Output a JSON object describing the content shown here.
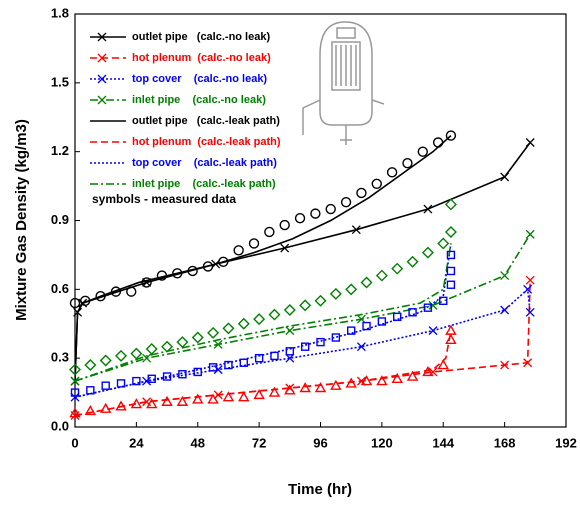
{
  "chart_data": {
    "type": "line",
    "x_label": "Time (hr)",
    "y_label": "Mixture Gas Density (kg/m3)",
    "annotation": "symbols - measured data",
    "xlim": [
      0,
      192
    ],
    "xticks": [
      0,
      24,
      48,
      72,
      96,
      120,
      144,
      168,
      192
    ],
    "ylim": [
      0,
      1.8
    ],
    "yticks": [
      {
        "value": 0,
        "label": "0.0"
      },
      0.3,
      0.6,
      0.9,
      1.2,
      1.5,
      1.8
    ],
    "legend": "top-left",
    "series": [
      {
        "name": "outlet pipe   (calc.-no leak)",
        "color": "#000000",
        "dash": "solid",
        "marker": "x",
        "x": [
          0,
          1,
          3,
          28,
          55,
          82,
          110,
          138,
          168,
          178
        ],
        "values": [
          0.2,
          0.5,
          0.54,
          0.63,
          0.71,
          0.78,
          0.86,
          0.95,
          1.09,
          1.24
        ]
      },
      {
        "name": "hot plenum  (calc.-no leak)",
        "color": "#ff0000",
        "dash": "dashed",
        "marker": "x",
        "x": [
          0,
          28,
          56,
          84,
          112,
          140,
          168,
          177,
          178
        ],
        "values": [
          0.05,
          0.11,
          0.14,
          0.17,
          0.2,
          0.24,
          0.27,
          0.28,
          0.64
        ]
      },
      {
        "name": "top cover    (calc.-no leak)",
        "color": "#0000ff",
        "dash": "dotted",
        "marker": "x",
        "x": [
          0,
          28,
          56,
          84,
          112,
          140,
          168,
          177,
          178
        ],
        "values": [
          0.13,
          0.2,
          0.25,
          0.3,
          0.35,
          0.42,
          0.51,
          0.6,
          0.5
        ]
      },
      {
        "name": "inlet pipe    (calc.-no leak)",
        "color": "#008000",
        "dash": "dashdot",
        "marker": "x",
        "x": [
          0,
          28,
          56,
          84,
          112,
          140,
          168,
          178
        ],
        "values": [
          0.2,
          0.3,
          0.36,
          0.42,
          0.47,
          0.53,
          0.66,
          0.84
        ]
      },
      {
        "name": "outlet pipe   (calc.-leak path)",
        "color": "#000000",
        "dash": "solid",
        "x": [
          0,
          1,
          3,
          10,
          25,
          40,
          55,
          70,
          85,
          100,
          115,
          130,
          140,
          147
        ],
        "values": [
          0.2,
          0.5,
          0.54,
          0.57,
          0.63,
          0.67,
          0.71,
          0.76,
          0.82,
          0.9,
          1.0,
          1.12,
          1.2,
          1.27
        ]
      },
      {
        "name": "hot plenum  (calc.-leak path)",
        "color": "#ff0000",
        "dash": "dashed",
        "x": [
          0,
          28,
          56,
          84,
          112,
          140,
          145,
          147
        ],
        "values": [
          0.05,
          0.11,
          0.14,
          0.17,
          0.2,
          0.25,
          0.3,
          0.42
        ]
      },
      {
        "name": "top cover    (calc.-leak path)",
        "color": "#0000ff",
        "dash": "dotted",
        "x": [
          0,
          28,
          56,
          84,
          112,
          135,
          144,
          147
        ],
        "values": [
          0.13,
          0.2,
          0.27,
          0.34,
          0.42,
          0.5,
          0.57,
          0.8
        ]
      },
      {
        "name": "inlet pipe    (calc.-leak path)",
        "color": "#008000",
        "dash": "dashdot",
        "x": [
          0,
          28,
          56,
          84,
          112,
          135,
          144,
          147
        ],
        "values": [
          0.2,
          0.31,
          0.38,
          0.44,
          0.49,
          0.54,
          0.6,
          0.8
        ]
      }
    ],
    "measured": [
      {
        "color": "#000000",
        "marker": "circle",
        "x": [
          0,
          4,
          10,
          16,
          22,
          28,
          34,
          40,
          46,
          52,
          58,
          64,
          70,
          76,
          82,
          88,
          94,
          100,
          106,
          112,
          118,
          124,
          130,
          136,
          142,
          147
        ],
        "values": [
          0.54,
          0.55,
          0.57,
          0.59,
          0.59,
          0.63,
          0.66,
          0.67,
          0.68,
          0.7,
          0.72,
          0.77,
          0.8,
          0.85,
          0.88,
          0.91,
          0.93,
          0.95,
          0.98,
          1.02,
          1.06,
          1.11,
          1.15,
          1.2,
          1.24,
          1.27
        ]
      },
      {
        "color": "#ff0000",
        "marker": "triangle",
        "x": [
          0,
          6,
          12,
          18,
          24,
          30,
          36,
          42,
          48,
          54,
          60,
          66,
          72,
          78,
          84,
          90,
          96,
          102,
          108,
          114,
          120,
          126,
          132,
          138,
          144,
          147,
          147
        ],
        "values": [
          0.06,
          0.07,
          0.08,
          0.09,
          0.1,
          0.1,
          0.11,
          0.11,
          0.12,
          0.12,
          0.13,
          0.13,
          0.14,
          0.15,
          0.16,
          0.17,
          0.17,
          0.18,
          0.19,
          0.2,
          0.2,
          0.21,
          0.22,
          0.24,
          0.27,
          0.38,
          0.42
        ]
      },
      {
        "color": "#0000ff",
        "marker": "square",
        "x": [
          0,
          6,
          12,
          18,
          24,
          30,
          36,
          42,
          48,
          54,
          60,
          66,
          72,
          78,
          84,
          90,
          96,
          102,
          108,
          114,
          120,
          126,
          132,
          138,
          144,
          147,
          147,
          147
        ],
        "values": [
          0.15,
          0.16,
          0.18,
          0.19,
          0.2,
          0.21,
          0.22,
          0.23,
          0.24,
          0.26,
          0.27,
          0.28,
          0.3,
          0.31,
          0.33,
          0.35,
          0.37,
          0.39,
          0.42,
          0.44,
          0.46,
          0.48,
          0.5,
          0.52,
          0.55,
          0.62,
          0.68,
          0.75
        ]
      },
      {
        "color": "#008000",
        "marker": "diamond",
        "x": [
          0,
          6,
          12,
          18,
          24,
          30,
          36,
          42,
          48,
          54,
          60,
          66,
          72,
          78,
          84,
          90,
          96,
          102,
          108,
          114,
          120,
          126,
          132,
          138,
          144,
          147,
          147
        ],
        "values": [
          0.25,
          0.27,
          0.29,
          0.31,
          0.32,
          0.34,
          0.35,
          0.37,
          0.39,
          0.41,
          0.43,
          0.45,
          0.47,
          0.49,
          0.51,
          0.53,
          0.55,
          0.58,
          0.6,
          0.63,
          0.66,
          0.69,
          0.72,
          0.76,
          0.8,
          0.85,
          0.97
        ]
      }
    ]
  }
}
